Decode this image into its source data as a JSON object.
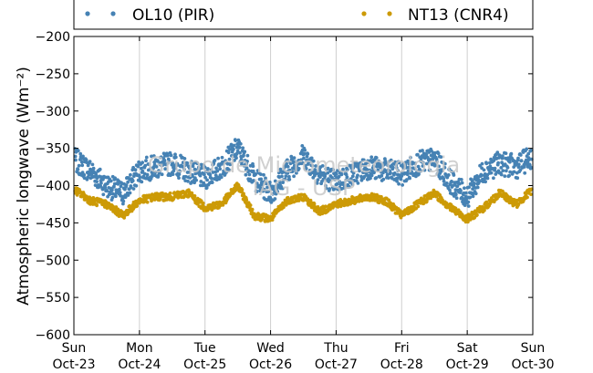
{
  "chart_data": {
    "type": "scatter",
    "title": "",
    "ylabel": "Atmospheric longwave (Wm⁻²)",
    "xlabel": "",
    "ylim": [
      -600,
      -200
    ],
    "yticks": [
      -200,
      -250,
      -300,
      -350,
      -400,
      -450,
      -500,
      -550,
      -600
    ],
    "xlim": [
      "2016-10-23",
      "2016-10-30"
    ],
    "xticks": [
      {
        "day": "Sun",
        "date": "Oct-23"
      },
      {
        "day": "Mon",
        "date": "Oct-24"
      },
      {
        "day": "Tue",
        "date": "Oct-25"
      },
      {
        "day": "Wed",
        "date": "Oct-26"
      },
      {
        "day": "Thu",
        "date": "Oct-27"
      },
      {
        "day": "Fri",
        "date": "Oct-28"
      },
      {
        "day": "Sat",
        "date": "Oct-29"
      },
      {
        "day": "Sun",
        "date": "Oct-30"
      }
    ],
    "grid": "vertical",
    "legend_position": "top",
    "watermark": [
      "Grupo de Micrometeorologia",
      "IAG - USP"
    ],
    "series": [
      {
        "name": "OL10 (PIR)",
        "color": "#4682b4",
        "x": [
          "Oct-23 00:00",
          "Oct-23 06:00",
          "Oct-23 12:00",
          "Oct-23 18:00",
          "Oct-24 00:00",
          "Oct-24 06:00",
          "Oct-24 12:00",
          "Oct-24 18:00",
          "Oct-25 00:00",
          "Oct-25 06:00",
          "Oct-25 12:00",
          "Oct-25 18:00",
          "Oct-26 00:00",
          "Oct-26 06:00",
          "Oct-26 12:00",
          "Oct-26 18:00",
          "Oct-27 00:00",
          "Oct-27 06:00",
          "Oct-27 12:00",
          "Oct-27 18:00",
          "Oct-28 00:00",
          "Oct-28 06:00",
          "Oct-28 12:00",
          "Oct-28 18:00",
          "Oct-29 00:00",
          "Oct-29 06:00",
          "Oct-29 12:00",
          "Oct-29 18:00",
          "Oct-30 00:00"
        ],
        "y": [
          -365,
          -380,
          -400,
          -410,
          -380,
          -375,
          -370,
          -380,
          -390,
          -375,
          -350,
          -390,
          -410,
          -380,
          -360,
          -385,
          -395,
          -385,
          -375,
          -380,
          -385,
          -370,
          -365,
          -395,
          -415,
          -380,
          -370,
          -375,
          -360
        ]
      },
      {
        "name": "NT13 (CNR4)",
        "color": "#cc9a06",
        "x": [
          "Oct-23 00:00",
          "Oct-23 06:00",
          "Oct-23 12:00",
          "Oct-23 18:00",
          "Oct-24 00:00",
          "Oct-24 06:00",
          "Oct-24 12:00",
          "Oct-24 18:00",
          "Oct-25 00:00",
          "Oct-25 06:00",
          "Oct-25 12:00",
          "Oct-25 18:00",
          "Oct-26 00:00",
          "Oct-26 06:00",
          "Oct-26 12:00",
          "Oct-26 18:00",
          "Oct-27 00:00",
          "Oct-27 06:00",
          "Oct-27 12:00",
          "Oct-27 18:00",
          "Oct-28 00:00",
          "Oct-28 06:00",
          "Oct-28 12:00",
          "Oct-28 18:00",
          "Oct-29 00:00",
          "Oct-29 06:00",
          "Oct-29 12:00",
          "Oct-29 18:00",
          "Oct-30 00:00"
        ],
        "y": [
          -405,
          -420,
          -425,
          -440,
          -420,
          -415,
          -415,
          -410,
          -430,
          -425,
          -400,
          -440,
          -445,
          -420,
          -415,
          -435,
          -425,
          -420,
          -415,
          -420,
          -440,
          -425,
          -410,
          -430,
          -445,
          -430,
          -410,
          -425,
          -405
        ]
      }
    ]
  }
}
